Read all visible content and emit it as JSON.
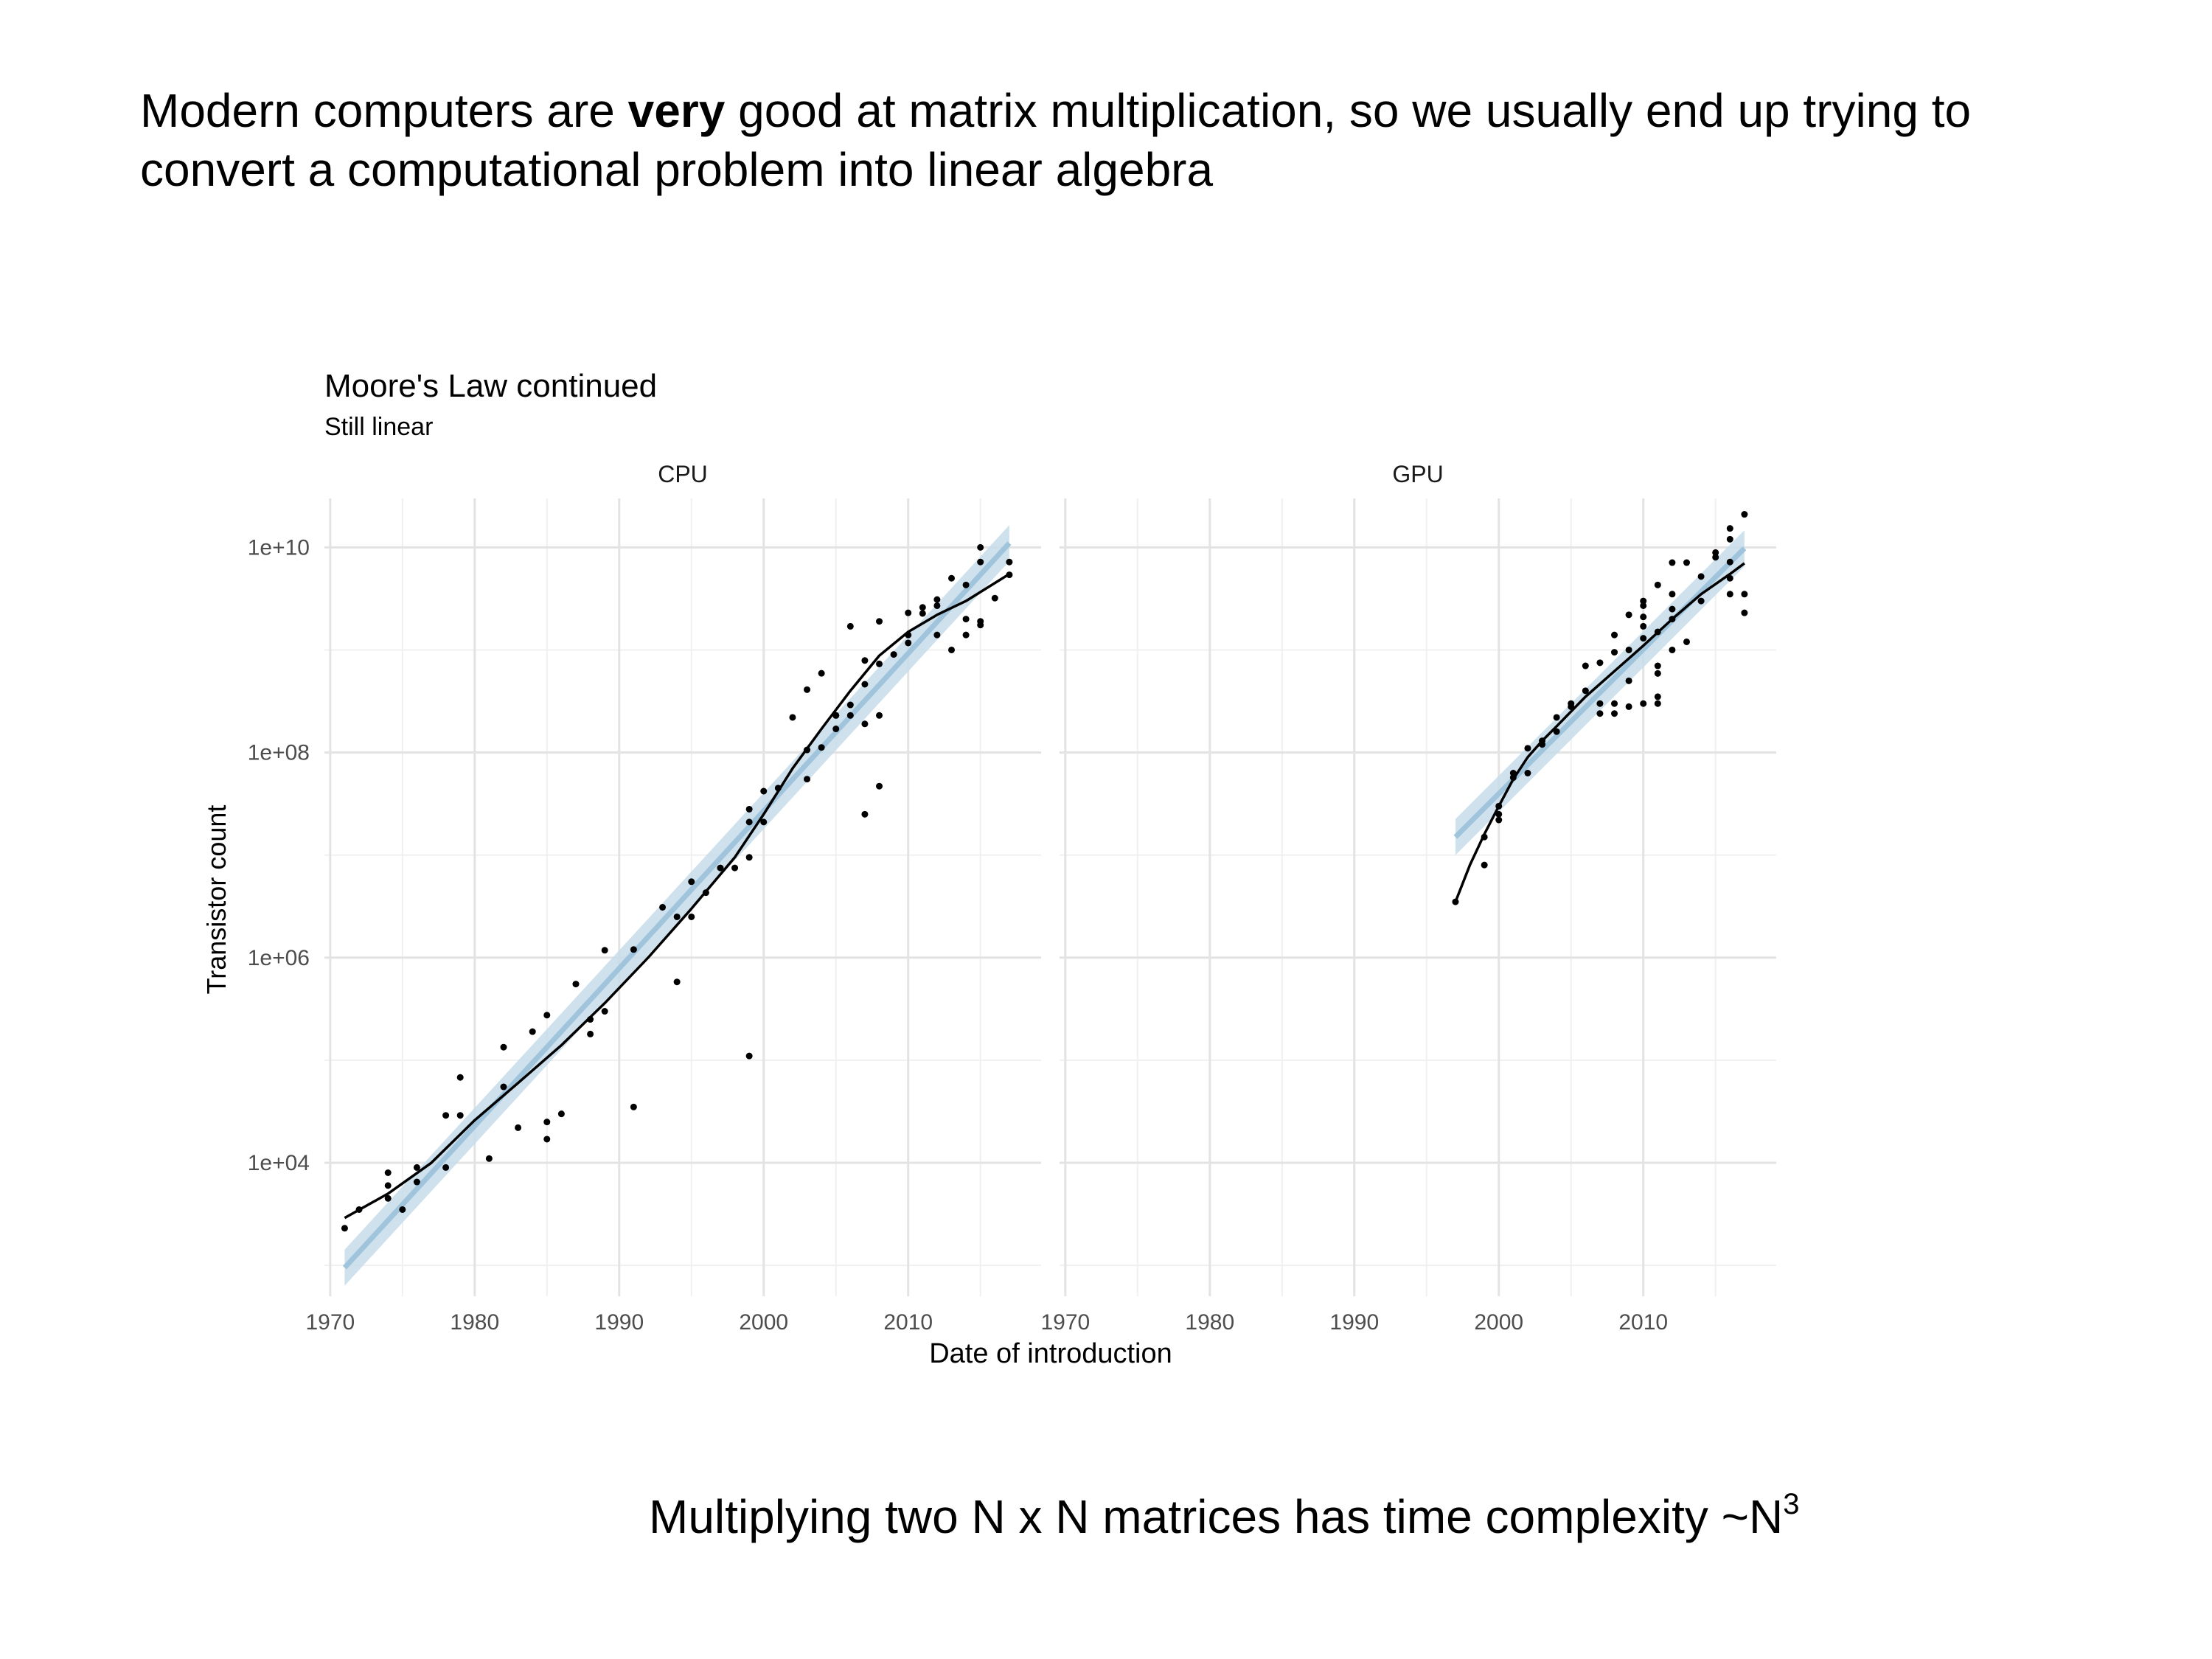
{
  "slide": {
    "heading_pre": "Modern computers are ",
    "heading_bold": "very",
    "heading_post": " good at matrix multiplication, so we usually end up trying to convert a computational problem into linear algebra",
    "footer_text": "Multiplying two N x N matrices has time complexity  ~N",
    "footer_sup": "3"
  },
  "chart_data": {
    "type": "scatter",
    "title": "Moore's Law continued",
    "subtitle": "Still linear",
    "xlabel": "Date of introduction",
    "ylabel": "Transistor count",
    "y_scale": "log10",
    "xlim": [
      1969.6,
      2019.2
    ],
    "ylim": [
      500,
      30000000000
    ],
    "x_ticks": [
      1970,
      1980,
      1990,
      2000,
      2010
    ],
    "x_tick_labels": [
      "1970",
      "1980",
      "1990",
      "2000",
      "2010"
    ],
    "y_ticks": [
      10000,
      1000000,
      100000000,
      10000000000
    ],
    "y_tick_labels": [
      "1e+04",
      "1e+06",
      "1e+08",
      "1e+10"
    ],
    "grid": true,
    "colors": {
      "points": "#000000",
      "loess": "#000000",
      "fit_line": "#9fc4dc",
      "fit_band": "#c6dcea"
    },
    "panels": [
      {
        "name": "CPU",
        "points": [
          [
            1971,
            2300
          ],
          [
            1972,
            3500
          ],
          [
            1974,
            8000
          ],
          [
            1974,
            4500
          ],
          [
            1974,
            6000
          ],
          [
            1975,
            3500
          ],
          [
            1976,
            9000
          ],
          [
            1976,
            6500
          ],
          [
            1978,
            29000
          ],
          [
            1978,
            9000
          ],
          [
            1979,
            68000
          ],
          [
            1979,
            29000
          ],
          [
            1981,
            11000
          ],
          [
            1982,
            55000
          ],
          [
            1982,
            134000
          ],
          [
            1983,
            22000
          ],
          [
            1984,
            190000
          ],
          [
            1985,
            275000
          ],
          [
            1985,
            25000
          ],
          [
            1985,
            17000
          ],
          [
            1986,
            30000
          ],
          [
            1987,
            553000
          ],
          [
            1988,
            180000
          ],
          [
            1988,
            250000
          ],
          [
            1989,
            1180000
          ],
          [
            1989,
            300000
          ],
          [
            1991,
            1200000
          ],
          [
            1991,
            35000
          ],
          [
            1993,
            3100000
          ],
          [
            1994,
            2500000
          ],
          [
            1994,
            580000
          ],
          [
            1995,
            5500000
          ],
          [
            1995,
            2500000
          ],
          [
            1996,
            4300000
          ],
          [
            1997,
            7500000
          ],
          [
            1998,
            7500000
          ],
          [
            1999,
            9500000
          ],
          [
            1999,
            21000000
          ],
          [
            1999,
            28000000
          ],
          [
            1999,
            110000
          ],
          [
            2000,
            42000000
          ],
          [
            2000,
            21000000
          ],
          [
            2001,
            45000000
          ],
          [
            2002,
            220000000
          ],
          [
            2003,
            55000000
          ],
          [
            2003,
            410000000
          ],
          [
            2003,
            106000000
          ],
          [
            2004,
            592000000
          ],
          [
            2004,
            112000000
          ],
          [
            2005,
            230000000
          ],
          [
            2005,
            170000000
          ],
          [
            2005,
            230000000
          ],
          [
            2006,
            1700000000
          ],
          [
            2006,
            291000000
          ],
          [
            2006,
            230000000
          ],
          [
            2007,
            789000000
          ],
          [
            2007,
            463000000
          ],
          [
            2007,
            25000000
          ],
          [
            2007,
            190000000
          ],
          [
            2008,
            731000000
          ],
          [
            2008,
            1900000000
          ],
          [
            2008,
            230000000
          ],
          [
            2008,
            47000000
          ],
          [
            2009,
            904000000
          ],
          [
            2010,
            1170000000
          ],
          [
            2010,
            2300000000
          ],
          [
            2010,
            1400000000
          ],
          [
            2011,
            2270000000
          ],
          [
            2011,
            2600000000
          ],
          [
            2012,
            1400000000
          ],
          [
            2012,
            2700000000
          ],
          [
            2012,
            3100000000
          ],
          [
            2013,
            1000000000
          ],
          [
            2013,
            5000000000
          ],
          [
            2014,
            2000000000
          ],
          [
            2014,
            1400000000
          ],
          [
            2014,
            4300000000
          ],
          [
            2015,
            1900000000
          ],
          [
            2015,
            1750000000
          ],
          [
            2015,
            10000000000
          ],
          [
            2015,
            7200000000
          ],
          [
            2016,
            3200000000
          ],
          [
            2017,
            7200000000
          ],
          [
            2017,
            5400000000
          ]
        ],
        "loess": [
          [
            1971,
            2900
          ],
          [
            1974,
            5000
          ],
          [
            1977,
            10000
          ],
          [
            1980,
            26000
          ],
          [
            1983,
            60000
          ],
          [
            1986,
            140000
          ],
          [
            1989,
            360000
          ],
          [
            1992,
            1000000
          ],
          [
            1995,
            3000000
          ],
          [
            1998,
            9500000
          ],
          [
            2000,
            25000000
          ],
          [
            2002,
            70000000
          ],
          [
            2004,
            170000000
          ],
          [
            2006,
            400000000
          ],
          [
            2008,
            880000000
          ],
          [
            2010,
            1500000000
          ],
          [
            2012,
            2200000000
          ],
          [
            2014,
            3000000000
          ],
          [
            2017,
            5500000000
          ]
        ],
        "fit": {
          "x": [
            1971,
            2017
          ],
          "y": [
            950,
            11000000000
          ],
          "band_ratio": 1.5
        }
      },
      {
        "name": "GPU",
        "points": [
          [
            1997,
            3500000
          ],
          [
            1999,
            8000000
          ],
          [
            1999,
            15000000
          ],
          [
            2000,
            22000000
          ],
          [
            2000,
            25000000
          ],
          [
            2000,
            30000000
          ],
          [
            2001,
            57000000
          ],
          [
            2001,
            63000000
          ],
          [
            2002,
            63000000
          ],
          [
            2002,
            110000000
          ],
          [
            2003,
            130000000
          ],
          [
            2003,
            120000000
          ],
          [
            2004,
            220000000
          ],
          [
            2004,
            160000000
          ],
          [
            2005,
            300000000
          ],
          [
            2005,
            280000000
          ],
          [
            2006,
            700000000
          ],
          [
            2006,
            400000000
          ],
          [
            2007,
            750000000
          ],
          [
            2007,
            240000000
          ],
          [
            2007,
            300000000
          ],
          [
            2008,
            1400000000
          ],
          [
            2008,
            950000000
          ],
          [
            2008,
            300000000
          ],
          [
            2008,
            240000000
          ],
          [
            2009,
            2200000000
          ],
          [
            2009,
            1000000000
          ],
          [
            2009,
            500000000
          ],
          [
            2009,
            280000000
          ],
          [
            2010,
            3000000000
          ],
          [
            2010,
            2700000000
          ],
          [
            2010,
            2100000000
          ],
          [
            2010,
            1700000000
          ],
          [
            2010,
            1300000000
          ],
          [
            2010,
            300000000
          ],
          [
            2011,
            4300000000
          ],
          [
            2011,
            1500000000
          ],
          [
            2011,
            700000000
          ],
          [
            2011,
            590000000
          ],
          [
            2011,
            350000000
          ],
          [
            2011,
            300000000
          ],
          [
            2012,
            7100000000
          ],
          [
            2012,
            3500000000
          ],
          [
            2012,
            2500000000
          ],
          [
            2012,
            2000000000
          ],
          [
            2012,
            1000000000
          ],
          [
            2013,
            7100000000
          ],
          [
            2013,
            1200000000
          ],
          [
            2014,
            3000000000
          ],
          [
            2014,
            5200000000
          ],
          [
            2015,
            8000000000
          ],
          [
            2015,
            8900000000
          ],
          [
            2016,
            15300000000
          ],
          [
            2016,
            12000000000
          ],
          [
            2016,
            7200000000
          ],
          [
            2016,
            5000000000
          ],
          [
            2016,
            3500000000
          ],
          [
            2017,
            21000000000
          ],
          [
            2017,
            3500000000
          ],
          [
            2017,
            2300000000
          ]
        ],
        "loess": [
          [
            1997,
            3500000
          ],
          [
            1998,
            8000000
          ],
          [
            1999,
            16000000
          ],
          [
            2000,
            30000000
          ],
          [
            2001,
            55000000
          ],
          [
            2002,
            90000000
          ],
          [
            2003,
            130000000
          ],
          [
            2004,
            180000000
          ],
          [
            2006,
            350000000
          ],
          [
            2008,
            620000000
          ],
          [
            2010,
            1100000000
          ],
          [
            2012,
            2000000000
          ],
          [
            2014,
            3500000000
          ],
          [
            2016,
            5500000000
          ],
          [
            2017,
            7000000000
          ]
        ],
        "fit": {
          "x": [
            1997,
            2017
          ],
          "y": [
            15000000,
            9800000000
          ],
          "band_ratio": 1.5
        }
      }
    ]
  }
}
